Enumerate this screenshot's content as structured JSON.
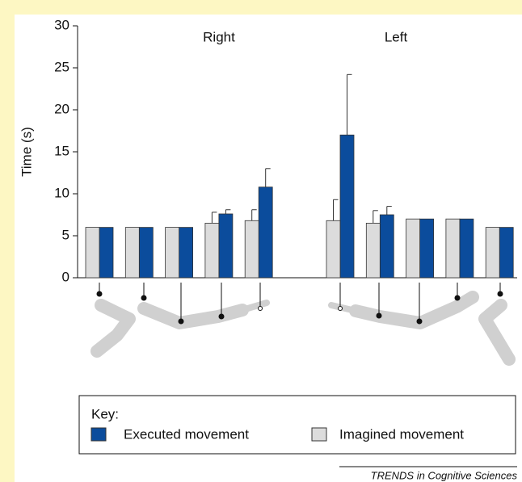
{
  "chart_data": {
    "type": "bar",
    "ylabel": "Time (s)",
    "annotations": [
      "Right",
      "Left"
    ],
    "categories": [
      null,
      null,
      null,
      null,
      null,
      null,
      null,
      null,
      null,
      null
    ],
    "series": [
      {
        "name": "Executed movement",
        "color": "#0b4c9c",
        "values": [
          6,
          6,
          6,
          7.6,
          10.8,
          17,
          7.5,
          7,
          7,
          6
        ],
        "errors": [
          null,
          null,
          null,
          0.5,
          2.2,
          7.2,
          1.0,
          null,
          null,
          null
        ]
      },
      {
        "name": "Imagined movement",
        "color": "#dcdcdc",
        "values": [
          6,
          6,
          6,
          6.5,
          6.8,
          6.8,
          6.5,
          7,
          7,
          6
        ],
        "errors": [
          null,
          null,
          null,
          1.3,
          1.3,
          2.5,
          1.5,
          null,
          null,
          null
        ]
      }
    ],
    "ylim": [
      0,
      30
    ],
    "yticks": [
      0,
      5,
      10,
      15,
      20,
      25,
      30
    ],
    "legend_title": "Key:",
    "source": "TRENDS in Cognitive Sciences"
  }
}
